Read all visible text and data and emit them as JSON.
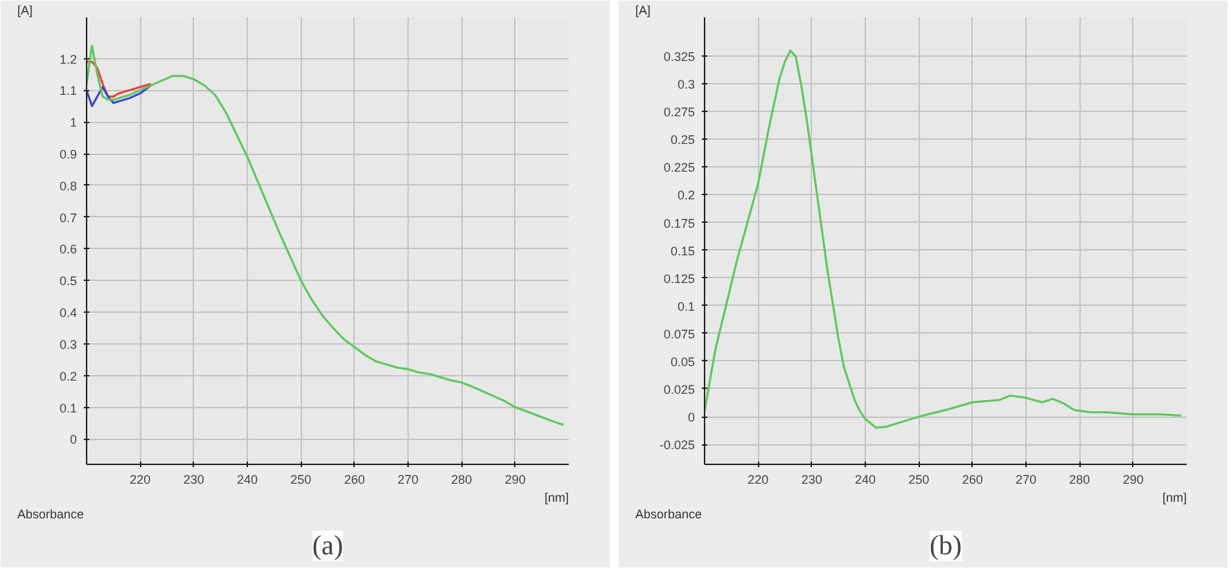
{
  "chart_data": [
    {
      "type": "line",
      "title": "(a)",
      "ylabel": "[A]",
      "xlabel": "[nm]",
      "annotations": [
        "Absorbance"
      ],
      "grid": true,
      "xlim": [
        210,
        300
      ],
      "ylim": [
        -0.08,
        1.33
      ],
      "xticks": [
        220,
        230,
        240,
        250,
        260,
        270,
        280,
        290
      ],
      "yticks": [
        0,
        0.1,
        0.2,
        0.3,
        0.4,
        0.5,
        0.6,
        0.7,
        0.8,
        0.9,
        1,
        1.1,
        1.2
      ],
      "x": [
        210,
        211,
        212,
        213,
        214,
        215,
        216,
        218,
        220,
        222,
        224,
        226,
        228,
        230,
        232,
        234,
        236,
        238,
        240,
        242,
        244,
        246,
        248,
        250,
        252,
        254,
        256,
        258,
        260,
        262,
        264,
        266,
        268,
        270,
        272,
        274,
        276,
        278,
        280,
        282,
        284,
        286,
        288,
        290,
        292,
        294,
        296,
        298,
        299
      ],
      "series": [
        {
          "color": "#e8413c",
          "values": [
            1.19,
            1.19,
            1.17,
            1.12,
            1.08,
            1.08,
            1.09,
            1.1,
            1.11,
            1.12,
            null,
            null,
            null,
            null,
            null,
            null,
            null,
            null,
            null,
            null,
            null,
            null,
            null,
            null,
            null,
            null,
            null,
            null,
            null,
            null,
            null,
            null,
            null,
            null,
            null,
            null,
            null,
            null,
            null,
            null,
            null,
            null,
            null,
            null,
            null,
            null,
            null,
            null,
            null
          ]
        },
        {
          "color": "#3c46c8",
          "values": [
            1.1,
            1.05,
            1.08,
            1.11,
            1.08,
            1.06,
            1.065,
            1.075,
            1.09,
            1.115,
            null,
            null,
            null,
            null,
            null,
            null,
            null,
            null,
            null,
            null,
            null,
            null,
            null,
            null,
            null,
            null,
            null,
            null,
            null,
            null,
            null,
            null,
            null,
            null,
            null,
            null,
            null,
            null,
            null,
            null,
            null,
            null,
            null,
            null,
            null,
            null,
            null,
            null,
            null
          ]
        },
        {
          "color": "#5cc85c",
          "values": [
            1.12,
            1.24,
            1.15,
            1.08,
            1.07,
            1.07,
            1.075,
            1.085,
            1.1,
            1.115,
            1.13,
            1.145,
            1.145,
            1.135,
            1.115,
            1.085,
            1.03,
            0.96,
            0.89,
            0.81,
            0.73,
            0.65,
            0.575,
            0.5,
            0.44,
            0.39,
            0.35,
            0.315,
            0.29,
            0.265,
            0.245,
            0.235,
            0.225,
            0.22,
            0.21,
            0.205,
            0.195,
            0.185,
            0.178,
            0.165,
            0.15,
            0.135,
            0.12,
            0.1,
            0.088,
            0.075,
            0.062,
            0.05,
            0.045
          ]
        }
      ]
    },
    {
      "type": "line",
      "title": "(b)",
      "ylabel": "[A]",
      "xlabel": "[nm]",
      "annotations": [
        "Absorbance"
      ],
      "grid": true,
      "xlim": [
        210,
        300
      ],
      "ylim": [
        -0.043,
        0.36
      ],
      "xticks": [
        220,
        230,
        240,
        250,
        260,
        270,
        280,
        290
      ],
      "yticks": [
        -0.025,
        0,
        0.025,
        0.05,
        0.075,
        0.1,
        0.125,
        0.15,
        0.175,
        0.2,
        0.225,
        0.25,
        0.275,
        0.3,
        0.325
      ],
      "x": [
        210,
        212,
        214,
        216,
        218,
        220,
        222,
        224,
        225,
        226,
        227,
        228,
        229,
        230,
        231,
        232,
        233,
        234,
        235,
        236,
        237,
        238,
        239,
        240,
        242,
        244,
        246,
        248,
        250,
        255,
        260,
        265,
        267,
        270,
        273,
        275,
        277,
        279,
        282,
        285,
        290,
        295,
        299
      ],
      "series": [
        {
          "color": "#5cc85c",
          "values": [
            0.005,
            0.06,
            0.1,
            0.14,
            0.175,
            0.21,
            0.26,
            0.305,
            0.32,
            0.33,
            0.325,
            0.3,
            0.27,
            0.235,
            0.2,
            0.165,
            0.13,
            0.1,
            0.07,
            0.045,
            0.03,
            0.015,
            0.005,
            -0.002,
            -0.01,
            -0.009,
            -0.006,
            -0.003,
            0,
            0.006,
            0.013,
            0.015,
            0.019,
            0.017,
            0.013,
            0.016,
            0.012,
            0.006,
            0.004,
            0.004,
            0.002,
            0.002,
            0.001
          ]
        }
      ]
    }
  ]
}
